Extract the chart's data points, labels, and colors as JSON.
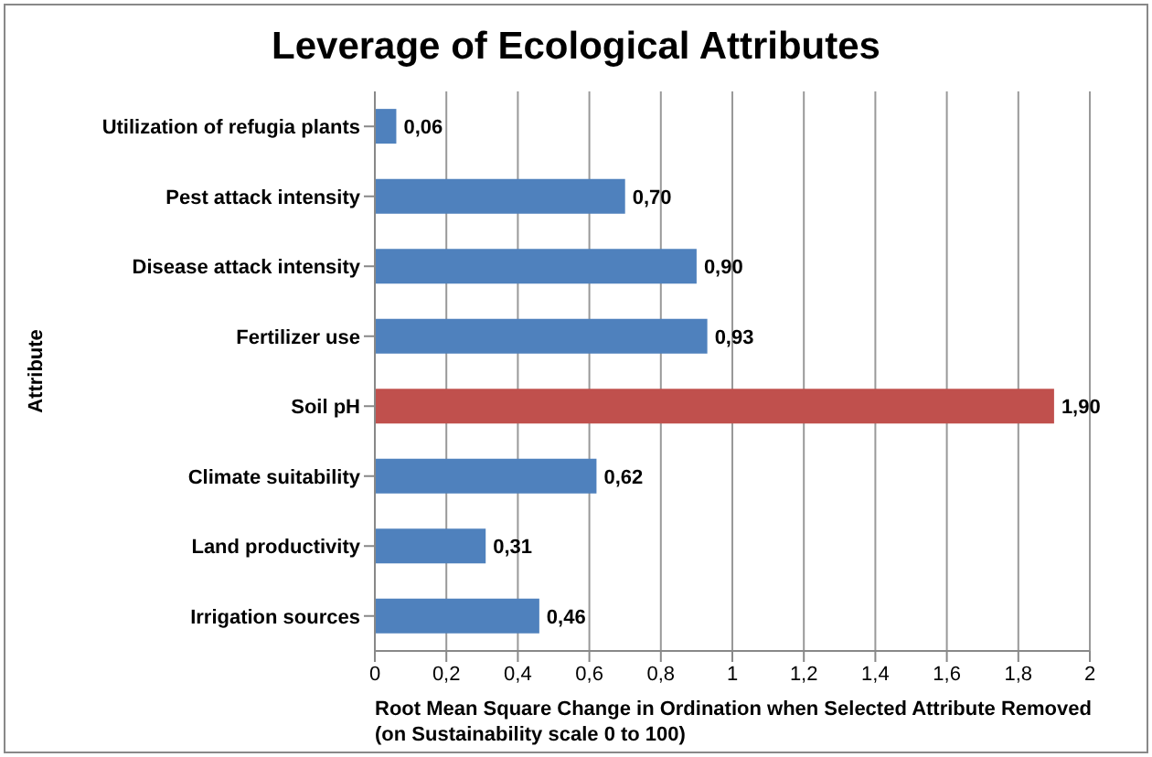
{
  "chart_data": {
    "type": "bar",
    "orientation": "horizontal",
    "title": "Leverage of Ecological Attributes",
    "xlabel": "Root Mean Square Change in Ordination when Selected Attribute Removed\n(on Sustainability scale 0 to 100)",
    "ylabel": "Attribute",
    "categories": [
      "Utilization of refugia plants",
      "Pest attack intensity",
      "Disease attack intensity",
      "Fertilizer use",
      "Soil pH",
      "Climate suitability",
      "Land productivity",
      "Irrigation sources"
    ],
    "values": [
      0.06,
      0.7,
      0.9,
      0.93,
      1.9,
      0.62,
      0.31,
      0.46
    ],
    "colors": [
      "#4f81bd",
      "#4f81bd",
      "#4f81bd",
      "#4f81bd",
      "#c0504d",
      "#4f81bd",
      "#4f81bd",
      "#4f81bd"
    ],
    "value_labels": [
      "0,06",
      "0,70",
      "0,90",
      "0,93",
      "1,90",
      "0,62",
      "0,31",
      "0,46"
    ],
    "xlim": [
      0,
      2
    ],
    "xticks": [
      0,
      {
        "value": 0.2,
        "label": "0,2"
      },
      {
        "value": 0.4,
        "label": "0,4"
      },
      {
        "value": 0.6,
        "label": "0,6"
      },
      {
        "value": 0.8,
        "label": "0,8"
      },
      1,
      {
        "value": 1.2,
        "label": "1,2"
      },
      {
        "value": 1.4,
        "label": "1,4"
      },
      {
        "value": 1.6,
        "label": "1,6"
      },
      {
        "value": 1.8,
        "label": "1,8"
      },
      2
    ],
    "grid": "x"
  }
}
